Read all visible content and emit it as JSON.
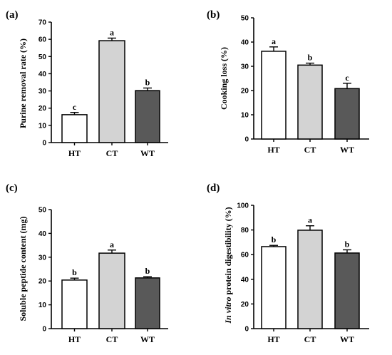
{
  "figure": {
    "categories": [
      "HT",
      "CT",
      "WT"
    ],
    "colors": [
      "#ffffff",
      "#d3d3d3",
      "#595959"
    ]
  },
  "chart_data": [
    {
      "panel": "(a)",
      "type": "bar",
      "ylabel": "Purine removal rate (%)",
      "categories": [
        "HT",
        "CT",
        "WT"
      ],
      "values": [
        16.2,
        59.2,
        30.2
      ],
      "errors": [
        1.3,
        1.5,
        1.5
      ],
      "letters": [
        "c",
        "a",
        "b"
      ],
      "ylim": [
        0,
        70
      ],
      "yticks": [
        0,
        10,
        20,
        30,
        40,
        50,
        60,
        70
      ]
    },
    {
      "panel": "(b)",
      "type": "bar",
      "ylabel": "Cooking loss (%)",
      "categories": [
        "HT",
        "CT",
        "WT"
      ],
      "values": [
        36.2,
        30.5,
        20.8
      ],
      "errors": [
        1.8,
        0.8,
        2.2
      ],
      "letters": [
        "a",
        "b",
        "c"
      ],
      "ylim": [
        0,
        50
      ],
      "yticks": [
        0,
        10,
        20,
        30,
        40,
        50
      ]
    },
    {
      "panel": "(c)",
      "type": "bar",
      "ylabel": "Soluble peptide content (mg)",
      "categories": [
        "HT",
        "CT",
        "WT"
      ],
      "values": [
        20.4,
        31.7,
        21.3
      ],
      "errors": [
        0.8,
        1.3,
        0.5
      ],
      "letters": [
        "b",
        "a",
        "b"
      ],
      "ylim": [
        0,
        50
      ],
      "yticks": [
        0,
        10,
        20,
        30,
        40,
        50
      ]
    },
    {
      "panel": "(d)",
      "type": "bar",
      "ylabel_italic": "In vitro",
      "ylabel_rest": " protein digestibility (%)",
      "categories": [
        "HT",
        "CT",
        "WT"
      ],
      "values": [
        66.5,
        79.8,
        61.3
      ],
      "errors": [
        1.0,
        3.6,
        2.6
      ],
      "letters": [
        "b",
        "a",
        "b"
      ],
      "ylim": [
        0,
        100
      ],
      "yticks": [
        0,
        20,
        40,
        60,
        80,
        100
      ]
    }
  ]
}
